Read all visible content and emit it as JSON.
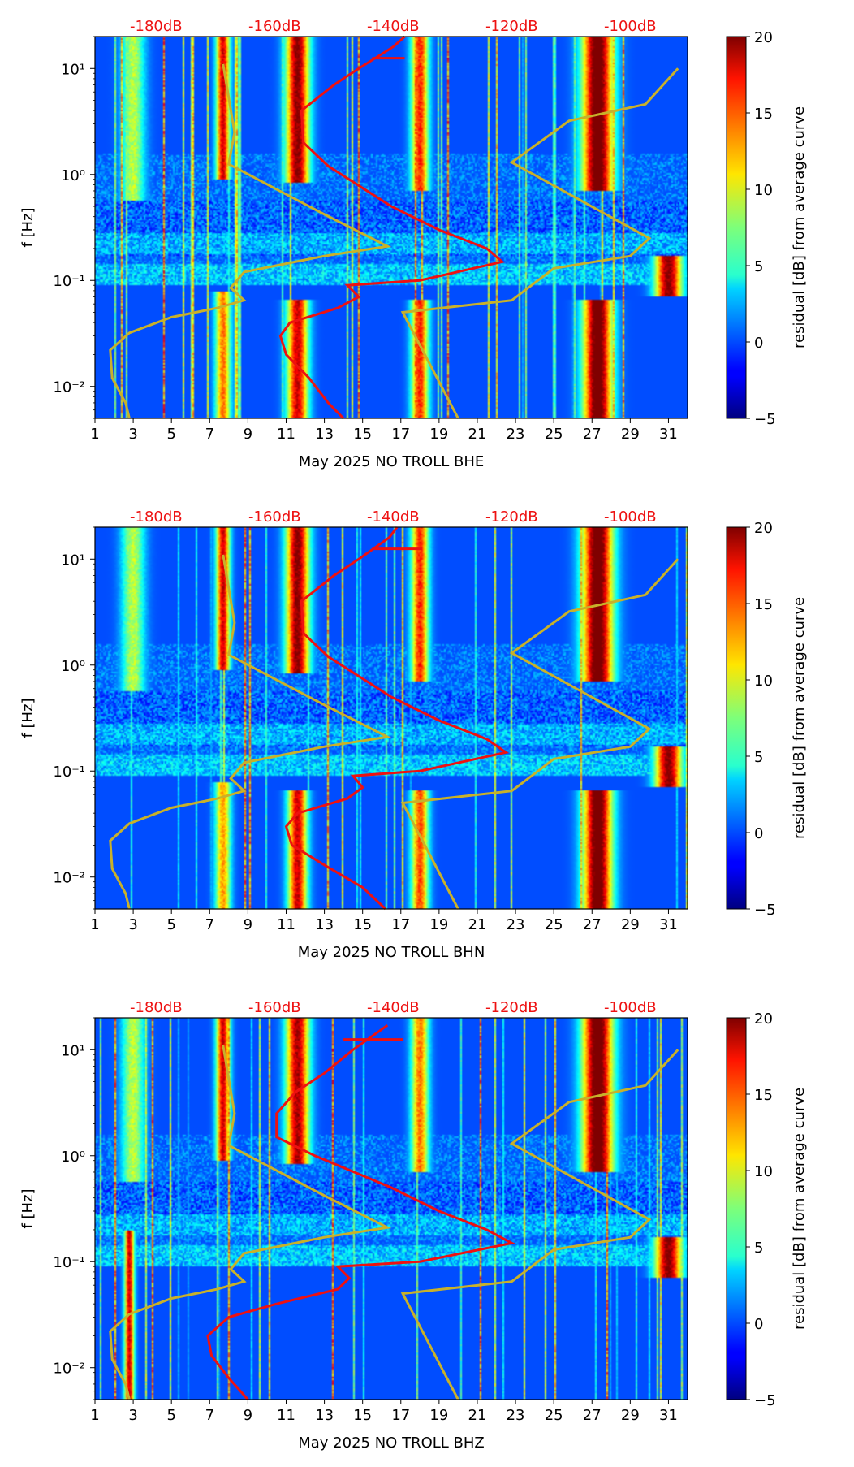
{
  "colorbar": {
    "label": "residual [dB] from average curve",
    "range": [
      -5,
      20
    ],
    "ticks": [
      "20",
      "15",
      "10",
      "5",
      "0",
      "−5"
    ],
    "tick_values": [
      20,
      15,
      10,
      5,
      0,
      -5
    ]
  },
  "colors": {
    "noise_model": "#c8b12a",
    "average_curve": "#ee1111",
    "db_labels": "#ee1111"
  },
  "chart_data": [
    {
      "type": "heatmap",
      "title": "",
      "xlabel": "May 2025 NO TROLL  BHE",
      "ylabel": "f [Hz]",
      "x_ticks": [
        "1",
        "3",
        "5",
        "7",
        "9",
        "11",
        "13",
        "15",
        "17",
        "19",
        "21",
        "23",
        "25",
        "27",
        "29",
        "31"
      ],
      "x_range": [
        1,
        32
      ],
      "y_ticks": [
        "10⁻²",
        "10⁻¹",
        "10⁰",
        "10¹"
      ],
      "y_tick_values": [
        0.01,
        0.1,
        1,
        10
      ],
      "y_range": [
        0.005,
        20
      ],
      "y_scale": "log",
      "db_labels": [
        "-180dB",
        "-160dB",
        "-140dB",
        "-120dB",
        "-100dB"
      ],
      "db_label_x": [
        4.2,
        10.4,
        16.6,
        22.8,
        29.0
      ],
      "events": [
        {
          "day": 3.0,
          "f_lo": 0.8,
          "f_hi": 20,
          "peak": 9,
          "width": 0.6
        },
        {
          "day": 7.7,
          "f_lo": 1.3,
          "f_hi": 20,
          "peak": 18,
          "width": 0.35
        },
        {
          "day": 7.7,
          "f_lo": 0.005,
          "f_hi": 0.06,
          "peak": 14,
          "width": 0.4
        },
        {
          "day": 11.6,
          "f_lo": 1.2,
          "f_hi": 20,
          "peak": 20,
          "width": 0.6
        },
        {
          "day": 11.6,
          "f_lo": 0.005,
          "f_hi": 0.05,
          "peak": 18,
          "width": 0.55
        },
        {
          "day": 18.0,
          "f_lo": 1.0,
          "f_hi": 20,
          "peak": 16,
          "width": 0.45
        },
        {
          "day": 18.0,
          "f_lo": 0.005,
          "f_hi": 0.05,
          "peak": 16,
          "width": 0.45
        },
        {
          "day": 27.3,
          "f_lo": 1.0,
          "f_hi": 20,
          "peak": 22,
          "width": 0.8
        },
        {
          "day": 27.3,
          "f_lo": 0.005,
          "f_hi": 0.05,
          "peak": 22,
          "width": 0.75
        },
        {
          "day": 31.0,
          "f_lo": 0.1,
          "f_hi": 0.13,
          "peak": 20,
          "width": 0.7
        }
      ],
      "noise_model_curve": [
        {
          "x": 2.8,
          "f": 0.005
        },
        {
          "x": 2.6,
          "f": 0.007
        },
        {
          "x": 1.9,
          "f": 0.012
        },
        {
          "x": 1.8,
          "f": 0.022
        },
        {
          "x": 2.8,
          "f": 0.032
        },
        {
          "x": 5.0,
          "f": 0.045
        },
        {
          "x": 7.4,
          "f": 0.055
        },
        {
          "x": 8.8,
          "f": 0.065
        },
        {
          "x": 8.1,
          "f": 0.085
        },
        {
          "x": 8.8,
          "f": 0.12
        },
        {
          "x": 13.0,
          "f": 0.17
        },
        {
          "x": 16.3,
          "f": 0.21
        },
        {
          "x": 13.0,
          "f": 0.42
        },
        {
          "x": 8.0,
          "f": 1.25
        },
        {
          "x": 8.3,
          "f": 2.5
        },
        {
          "x": 7.7,
          "f": 11
        }
      ],
      "noise_model_curve_right": [
        {
          "x": 20.0,
          "f": 0.005
        },
        {
          "x": 17.1,
          "f": 0.05
        },
        {
          "x": 22.8,
          "f": 0.065
        },
        {
          "x": 25.0,
          "f": 0.13
        },
        {
          "x": 29.0,
          "f": 0.17
        },
        {
          "x": 30.0,
          "f": 0.25
        },
        {
          "x": 22.8,
          "f": 1.3
        },
        {
          "x": 25.8,
          "f": 3.2
        },
        {
          "x": 29.8,
          "f": 4.6
        },
        {
          "x": 31.5,
          "f": 10
        }
      ],
      "average_curve": [
        {
          "x": 14.0,
          "f": 0.005
        },
        {
          "x": 13.2,
          "f": 0.007
        },
        {
          "x": 12.2,
          "f": 0.012
        },
        {
          "x": 11.0,
          "f": 0.02
        },
        {
          "x": 10.7,
          "f": 0.03
        },
        {
          "x": 11.2,
          "f": 0.04
        },
        {
          "x": 13.7,
          "f": 0.055
        },
        {
          "x": 14.8,
          "f": 0.07
        },
        {
          "x": 14.2,
          "f": 0.09
        },
        {
          "x": 18.0,
          "f": 0.1
        },
        {
          "x": 22.3,
          "f": 0.15
        },
        {
          "x": 21.5,
          "f": 0.2
        },
        {
          "x": 19.0,
          "f": 0.3
        },
        {
          "x": 16.5,
          "f": 0.5
        },
        {
          "x": 13.2,
          "f": 1.2
        },
        {
          "x": 11.9,
          "f": 2.0
        },
        {
          "x": 11.8,
          "f": 4.0
        },
        {
          "x": 13.5,
          "f": 7.0
        },
        {
          "x": 14.8,
          "f": 10
        },
        {
          "x": 16.6,
          "f": 16
        },
        {
          "x": 17.2,
          "f": 20
        }
      ],
      "average_curve_tail": [
        {
          "x": 15.5,
          "f": 12.5
        },
        {
          "x": 17.2,
          "f": 12.5
        }
      ]
    },
    {
      "type": "heatmap",
      "title": "",
      "xlabel": "May 2025 NO TROLL  BHN",
      "ylabel": "f [Hz]",
      "x_ticks": [
        "1",
        "3",
        "5",
        "7",
        "9",
        "11",
        "13",
        "15",
        "17",
        "19",
        "21",
        "23",
        "25",
        "27",
        "29",
        "31"
      ],
      "x_range": [
        1,
        32
      ],
      "y_ticks": [
        "10⁻²",
        "10⁻¹",
        "10⁰",
        "10¹"
      ],
      "y_tick_values": [
        0.01,
        0.1,
        1,
        10
      ],
      "y_range": [
        0.005,
        20
      ],
      "y_scale": "log",
      "db_labels": [
        "-180dB",
        "-160dB",
        "-140dB",
        "-120dB",
        "-100dB"
      ],
      "db_label_x": [
        4.2,
        10.4,
        16.6,
        22.8,
        29.0
      ],
      "events": [
        {
          "day": 3.0,
          "f_lo": 0.8,
          "f_hi": 20,
          "peak": 9,
          "width": 0.6
        },
        {
          "day": 7.7,
          "f_lo": 1.3,
          "f_hi": 20,
          "peak": 18,
          "width": 0.35
        },
        {
          "day": 7.7,
          "f_lo": 0.005,
          "f_hi": 0.06,
          "peak": 13,
          "width": 0.4
        },
        {
          "day": 11.6,
          "f_lo": 1.2,
          "f_hi": 20,
          "peak": 20,
          "width": 0.6
        },
        {
          "day": 11.6,
          "f_lo": 0.005,
          "f_hi": 0.05,
          "peak": 18,
          "width": 0.5
        },
        {
          "day": 18.0,
          "f_lo": 1.0,
          "f_hi": 20,
          "peak": 16,
          "width": 0.45
        },
        {
          "day": 18.0,
          "f_lo": 0.005,
          "f_hi": 0.05,
          "peak": 15,
          "width": 0.45
        },
        {
          "day": 27.3,
          "f_lo": 1.0,
          "f_hi": 20,
          "peak": 22,
          "width": 0.8
        },
        {
          "day": 27.3,
          "f_lo": 0.005,
          "f_hi": 0.05,
          "peak": 22,
          "width": 0.75
        },
        {
          "day": 31.0,
          "f_lo": 0.1,
          "f_hi": 0.13,
          "peak": 20,
          "width": 0.7
        }
      ],
      "noise_model_curve": [
        {
          "x": 2.8,
          "f": 0.005
        },
        {
          "x": 2.6,
          "f": 0.007
        },
        {
          "x": 1.9,
          "f": 0.012
        },
        {
          "x": 1.8,
          "f": 0.022
        },
        {
          "x": 2.8,
          "f": 0.032
        },
        {
          "x": 5.0,
          "f": 0.045
        },
        {
          "x": 7.4,
          "f": 0.055
        },
        {
          "x": 8.8,
          "f": 0.065
        },
        {
          "x": 8.1,
          "f": 0.085
        },
        {
          "x": 8.8,
          "f": 0.12
        },
        {
          "x": 13.0,
          "f": 0.17
        },
        {
          "x": 16.3,
          "f": 0.21
        },
        {
          "x": 13.0,
          "f": 0.42
        },
        {
          "x": 8.0,
          "f": 1.25
        },
        {
          "x": 8.3,
          "f": 2.5
        },
        {
          "x": 7.7,
          "f": 11
        }
      ],
      "noise_model_curve_right": [
        {
          "x": 20.0,
          "f": 0.005
        },
        {
          "x": 17.1,
          "f": 0.05
        },
        {
          "x": 22.8,
          "f": 0.065
        },
        {
          "x": 25.0,
          "f": 0.13
        },
        {
          "x": 29.0,
          "f": 0.17
        },
        {
          "x": 30.0,
          "f": 0.25
        },
        {
          "x": 22.8,
          "f": 1.3
        },
        {
          "x": 25.8,
          "f": 3.2
        },
        {
          "x": 29.8,
          "f": 4.6
        },
        {
          "x": 31.5,
          "f": 10
        }
      ],
      "average_curve": [
        {
          "x": 16.2,
          "f": 0.005
        },
        {
          "x": 15.0,
          "f": 0.008
        },
        {
          "x": 13.0,
          "f": 0.013
        },
        {
          "x": 11.3,
          "f": 0.02
        },
        {
          "x": 11.0,
          "f": 0.03
        },
        {
          "x": 11.6,
          "f": 0.04
        },
        {
          "x": 14.2,
          "f": 0.055
        },
        {
          "x": 15.0,
          "f": 0.07
        },
        {
          "x": 14.5,
          "f": 0.09
        },
        {
          "x": 18.0,
          "f": 0.1
        },
        {
          "x": 22.5,
          "f": 0.15
        },
        {
          "x": 21.5,
          "f": 0.2
        },
        {
          "x": 19.0,
          "f": 0.3
        },
        {
          "x": 16.5,
          "f": 0.5
        },
        {
          "x": 13.2,
          "f": 1.2
        },
        {
          "x": 11.9,
          "f": 2.0
        },
        {
          "x": 11.8,
          "f": 4.0
        },
        {
          "x": 13.5,
          "f": 7.0
        },
        {
          "x": 14.8,
          "f": 10
        },
        {
          "x": 16.4,
          "f": 16
        },
        {
          "x": 16.8,
          "f": 20
        }
      ],
      "average_curve_tail": [
        {
          "x": 15.5,
          "f": 12.5
        },
        {
          "x": 18.1,
          "f": 12.5
        }
      ]
    },
    {
      "type": "heatmap",
      "title": "",
      "xlabel": "May 2025 NO TROLL  BHZ",
      "ylabel": "f [Hz]",
      "x_ticks": [
        "1",
        "3",
        "5",
        "7",
        "9",
        "11",
        "13",
        "15",
        "17",
        "19",
        "21",
        "23",
        "25",
        "27",
        "29",
        "31"
      ],
      "x_range": [
        1,
        32
      ],
      "y_ticks": [
        "10⁻²",
        "10⁻¹",
        "10⁰",
        "10¹"
      ],
      "y_tick_values": [
        0.01,
        0.1,
        1,
        10
      ],
      "y_range": [
        0.005,
        20
      ],
      "y_scale": "log",
      "db_labels": [
        "-180dB",
        "-160dB",
        "-140dB",
        "-120dB",
        "-100dB"
      ],
      "db_label_x": [
        4.2,
        10.4,
        16.6,
        22.8,
        29.0
      ],
      "events": [
        {
          "day": 3.0,
          "f_lo": 0.8,
          "f_hi": 20,
          "peak": 9,
          "width": 0.6
        },
        {
          "day": 2.8,
          "f_lo": 0.005,
          "f_hi": 0.15,
          "peak": 18,
          "width": 0.25
        },
        {
          "day": 7.7,
          "f_lo": 1.3,
          "f_hi": 20,
          "peak": 18,
          "width": 0.35
        },
        {
          "day": 11.6,
          "f_lo": 1.2,
          "f_hi": 20,
          "peak": 19,
          "width": 0.6
        },
        {
          "day": 18.0,
          "f_lo": 1.0,
          "f_hi": 20,
          "peak": 14,
          "width": 0.45
        },
        {
          "day": 27.3,
          "f_lo": 1.0,
          "f_hi": 20,
          "peak": 22,
          "width": 0.8
        },
        {
          "day": 31.0,
          "f_lo": 0.1,
          "f_hi": 0.13,
          "peak": 20,
          "width": 0.7
        }
      ],
      "noise_model_curve": [
        {
          "x": 2.8,
          "f": 0.005
        },
        {
          "x": 2.6,
          "f": 0.007
        },
        {
          "x": 1.9,
          "f": 0.012
        },
        {
          "x": 1.8,
          "f": 0.022
        },
        {
          "x": 2.8,
          "f": 0.032
        },
        {
          "x": 5.0,
          "f": 0.045
        },
        {
          "x": 7.4,
          "f": 0.055
        },
        {
          "x": 8.8,
          "f": 0.065
        },
        {
          "x": 8.1,
          "f": 0.085
        },
        {
          "x": 8.8,
          "f": 0.12
        },
        {
          "x": 13.0,
          "f": 0.17
        },
        {
          "x": 16.3,
          "f": 0.21
        },
        {
          "x": 13.0,
          "f": 0.42
        },
        {
          "x": 8.0,
          "f": 1.25
        },
        {
          "x": 8.3,
          "f": 2.5
        },
        {
          "x": 7.7,
          "f": 11
        }
      ],
      "noise_model_curve_right": [
        {
          "x": 20.0,
          "f": 0.005
        },
        {
          "x": 17.1,
          "f": 0.05
        },
        {
          "x": 22.8,
          "f": 0.065
        },
        {
          "x": 25.0,
          "f": 0.13
        },
        {
          "x": 29.0,
          "f": 0.17
        },
        {
          "x": 30.0,
          "f": 0.25
        },
        {
          "x": 22.8,
          "f": 1.3
        },
        {
          "x": 25.8,
          "f": 3.2
        },
        {
          "x": 29.8,
          "f": 4.6
        },
        {
          "x": 31.5,
          "f": 10
        }
      ],
      "average_curve": [
        {
          "x": 9.0,
          "f": 0.005
        },
        {
          "x": 8.0,
          "f": 0.008
        },
        {
          "x": 7.1,
          "f": 0.013
        },
        {
          "x": 6.9,
          "f": 0.02
        },
        {
          "x": 8.0,
          "f": 0.03
        },
        {
          "x": 10.5,
          "f": 0.04
        },
        {
          "x": 13.7,
          "f": 0.055
        },
        {
          "x": 14.3,
          "f": 0.07
        },
        {
          "x": 13.7,
          "f": 0.09
        },
        {
          "x": 18.0,
          "f": 0.1
        },
        {
          "x": 22.8,
          "f": 0.15
        },
        {
          "x": 21.5,
          "f": 0.2
        },
        {
          "x": 19.0,
          "f": 0.3
        },
        {
          "x": 16.5,
          "f": 0.5
        },
        {
          "x": 12.5,
          "f": 1.0
        },
        {
          "x": 10.5,
          "f": 1.5
        },
        {
          "x": 10.5,
          "f": 2.5
        },
        {
          "x": 11.5,
          "f": 4.0
        },
        {
          "x": 13.0,
          "f": 6.0
        },
        {
          "x": 14.5,
          "f": 10
        },
        {
          "x": 16.3,
          "f": 17
        }
      ],
      "average_curve_tail": [
        {
          "x": 14.0,
          "f": 12.5
        },
        {
          "x": 17.1,
          "f": 12.5
        }
      ]
    }
  ]
}
